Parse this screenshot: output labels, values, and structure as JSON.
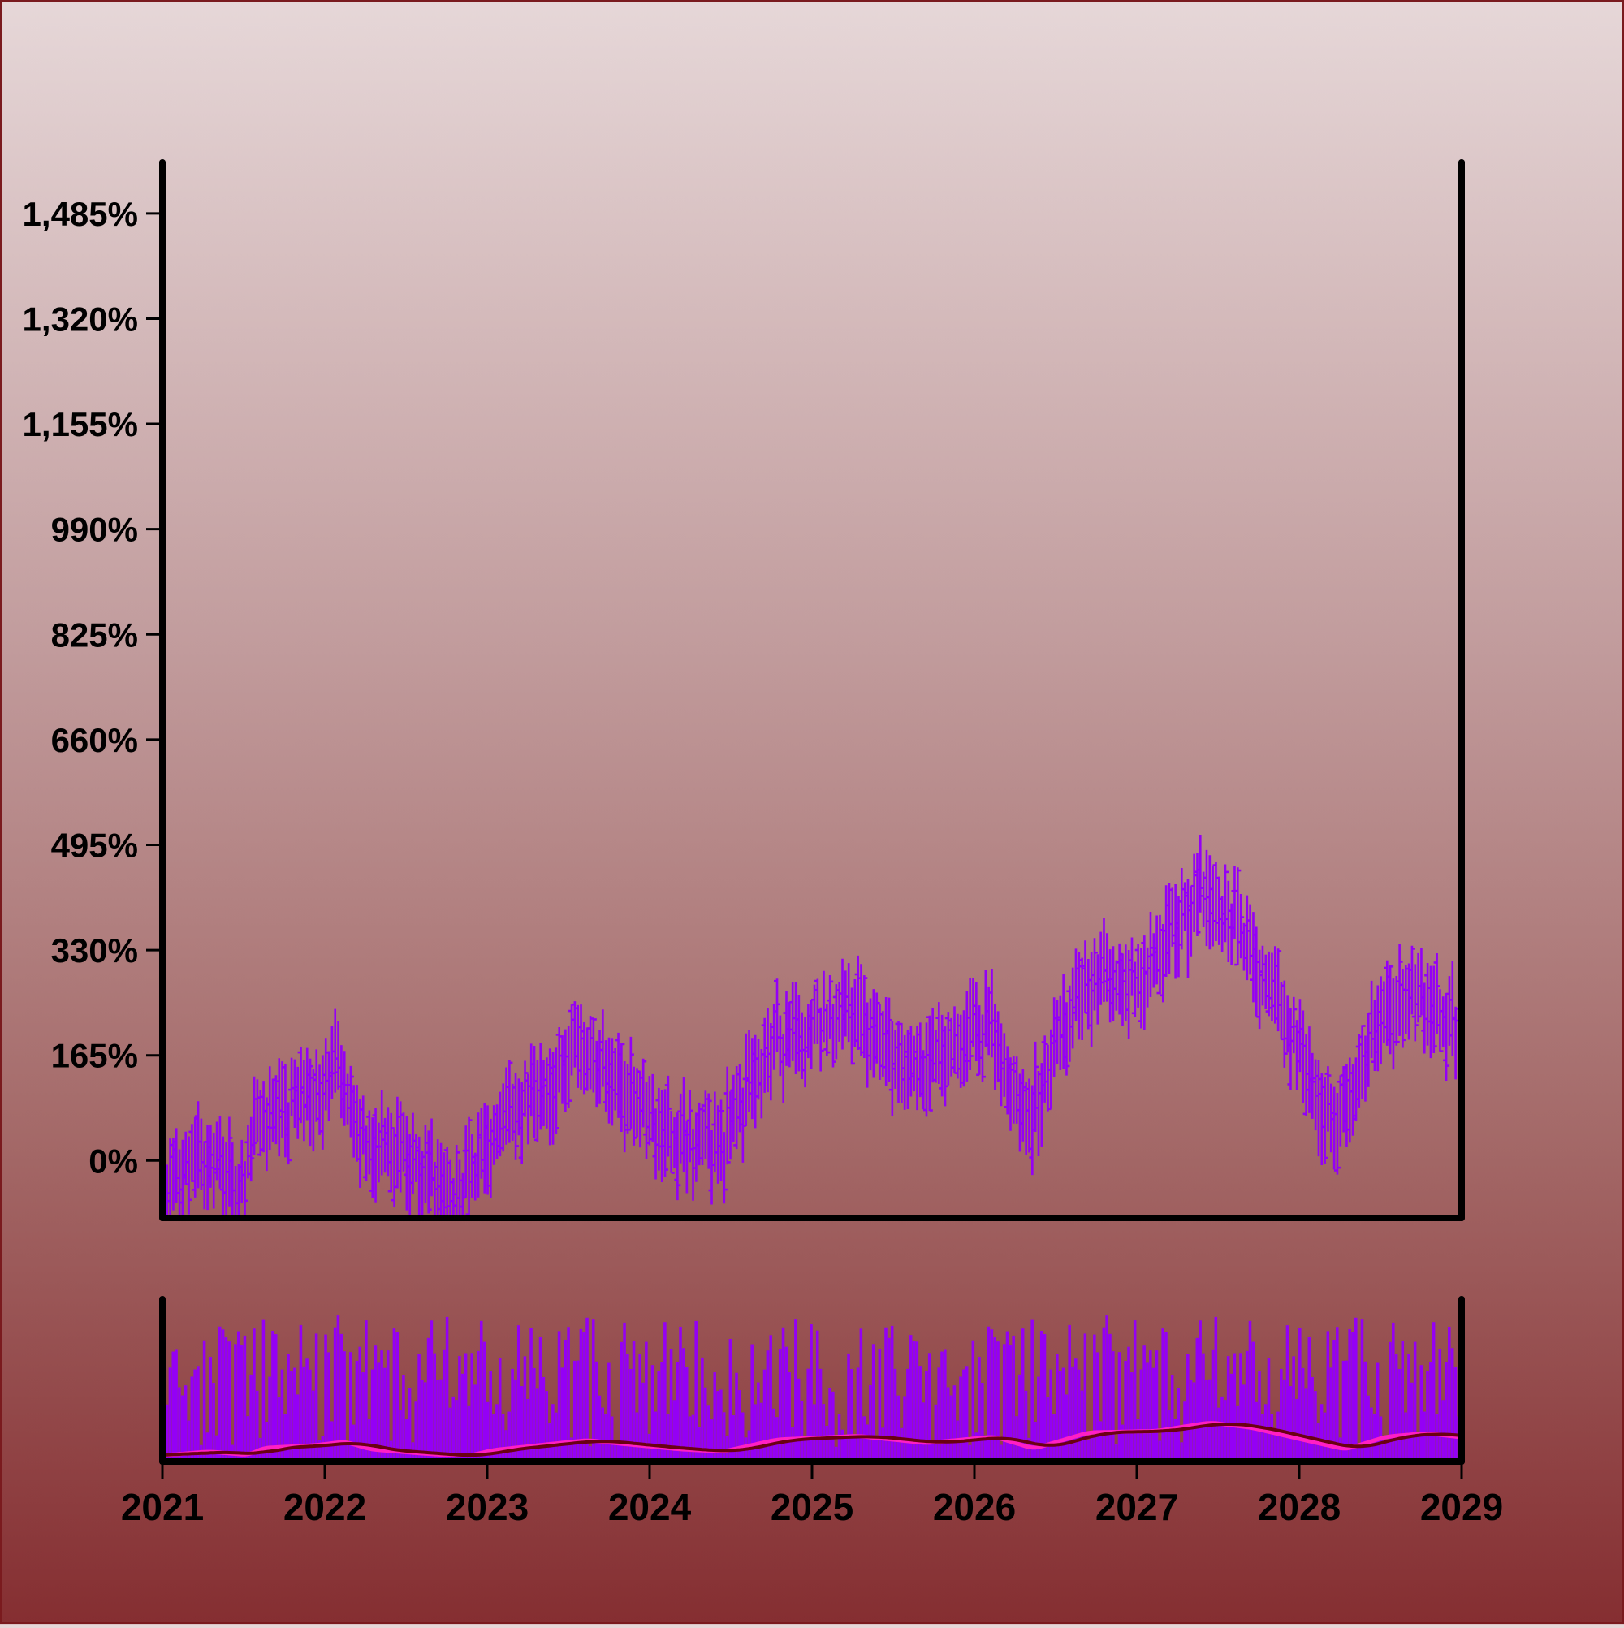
{
  "chart_data": {
    "type": "ohlc",
    "title": "",
    "xlabel": "",
    "ylabel": "",
    "x_range": [
      "2021-01-01",
      "2029-01-01"
    ],
    "x_tick_labels": [
      "2021",
      "2022",
      "2023",
      "2024",
      "2025",
      "2026",
      "2027",
      "2028",
      "2029"
    ],
    "price_panel": {
      "ylim": [
        -90,
        1565
      ],
      "y_tick_values": [
        0,
        165,
        330,
        495,
        660,
        825,
        990,
        1155,
        1320,
        1485
      ],
      "y_tick_labels": [
        "0%",
        "165%",
        "330%",
        "495%",
        "660%",
        "825%",
        "990%",
        "1,155%",
        "1,320%",
        "1,485%"
      ],
      "bar_color": "#9400f5",
      "series_approx": {
        "interval": "weekly",
        "keyframes": [
          {
            "date": "2021-01-01",
            "value": -40
          },
          {
            "date": "2021-04-01",
            "value": 10
          },
          {
            "date": "2021-07-01",
            "value": -40
          },
          {
            "date": "2021-08-01",
            "value": 60
          },
          {
            "date": "2021-12-01",
            "value": 100
          },
          {
            "date": "2022-02-01",
            "value": 150
          },
          {
            "date": "2022-04-01",
            "value": 40
          },
          {
            "date": "2022-08-01",
            "value": -20
          },
          {
            "date": "2022-11-01",
            "value": -60
          },
          {
            "date": "2023-01-01",
            "value": 30
          },
          {
            "date": "2023-05-01",
            "value": 110
          },
          {
            "date": "2023-08-01",
            "value": 170
          },
          {
            "date": "2023-11-01",
            "value": 110
          },
          {
            "date": "2024-03-01",
            "value": 40
          },
          {
            "date": "2024-06-01",
            "value": 10
          },
          {
            "date": "2024-10-01",
            "value": 180
          },
          {
            "date": "2025-04-01",
            "value": 230
          },
          {
            "date": "2025-09-01",
            "value": 130
          },
          {
            "date": "2026-02-01",
            "value": 220
          },
          {
            "date": "2026-05-01",
            "value": 50
          },
          {
            "date": "2026-09-01",
            "value": 280
          },
          {
            "date": "2027-02-01",
            "value": 300
          },
          {
            "date": "2027-06-01",
            "value": 420
          },
          {
            "date": "2027-09-01",
            "value": 350
          },
          {
            "date": "2028-01-01",
            "value": 170
          },
          {
            "date": "2028-04-01",
            "value": 40
          },
          {
            "date": "2028-07-01",
            "value": 220
          },
          {
            "date": "2028-10-01",
            "value": 270
          },
          {
            "date": "2029-01-01",
            "value": 200
          }
        ]
      }
    },
    "volume_panel": {
      "bar_color": "#9400f5",
      "series": [
        {
          "name": "",
          "color": "#ff1fc4"
        },
        {
          "name": "",
          "color": "#6a0012"
        }
      ]
    },
    "grid": false,
    "legend": "none"
  }
}
